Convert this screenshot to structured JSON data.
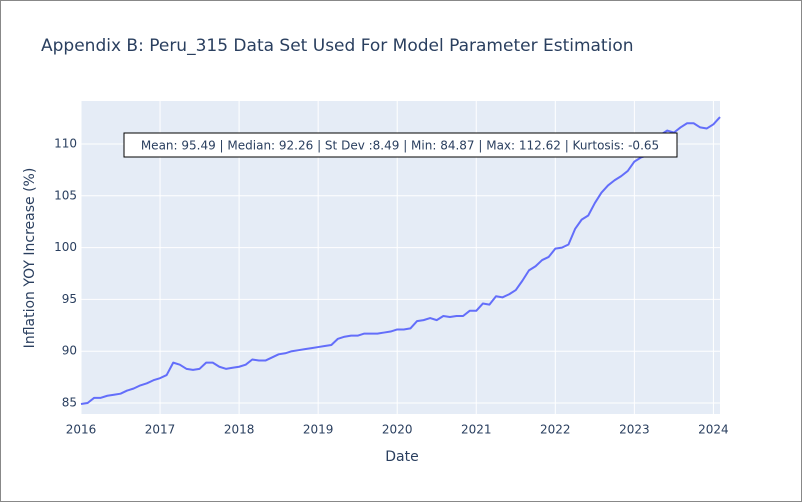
{
  "chart_data": {
    "type": "line",
    "title": "Appendix B: Peru_315 Data Set Used For Model Parameter Estimation",
    "x_label": "Date",
    "y_label": "Inflation YOY Increase (%)",
    "annotation": "Mean: 95.49 | Median: 92.26 | St Dev :8.49 | Min: 84.87 | Max: 112.62 | Kurtosis: -0.65",
    "x": [
      "2016-01",
      "2016-02",
      "2016-03",
      "2016-04",
      "2016-05",
      "2016-06",
      "2016-07",
      "2016-08",
      "2016-09",
      "2016-10",
      "2016-11",
      "2016-12",
      "2017-01",
      "2017-02",
      "2017-03",
      "2017-04",
      "2017-05",
      "2017-06",
      "2017-07",
      "2017-08",
      "2017-09",
      "2017-10",
      "2017-11",
      "2017-12",
      "2018-01",
      "2018-02",
      "2018-03",
      "2018-04",
      "2018-05",
      "2018-06",
      "2018-07",
      "2018-08",
      "2018-09",
      "2018-10",
      "2018-11",
      "2018-12",
      "2019-01",
      "2019-02",
      "2019-03",
      "2019-04",
      "2019-05",
      "2019-06",
      "2019-07",
      "2019-08",
      "2019-09",
      "2019-10",
      "2019-11",
      "2019-12",
      "2020-01",
      "2020-02",
      "2020-03",
      "2020-04",
      "2020-05",
      "2020-06",
      "2020-07",
      "2020-08",
      "2020-09",
      "2020-10",
      "2020-11",
      "2020-12",
      "2021-01",
      "2021-02",
      "2021-03",
      "2021-04",
      "2021-05",
      "2021-06",
      "2021-07",
      "2021-08",
      "2021-09",
      "2021-10",
      "2021-11",
      "2021-12",
      "2022-01",
      "2022-02",
      "2022-03",
      "2022-04",
      "2022-05",
      "2022-06",
      "2022-07",
      "2022-08",
      "2022-09",
      "2022-10",
      "2022-11",
      "2022-12",
      "2023-01",
      "2023-02",
      "2023-03",
      "2023-04",
      "2023-05",
      "2023-06",
      "2023-07",
      "2023-08",
      "2023-09",
      "2023-10",
      "2023-11",
      "2023-12",
      "2024-01",
      "2024-02"
    ],
    "series": [
      {
        "name": "Inflation",
        "color": "#636efa",
        "values": [
          84.9,
          85.0,
          85.5,
          85.5,
          85.7,
          85.8,
          85.9,
          86.2,
          86.4,
          86.7,
          86.9,
          87.2,
          87.4,
          87.7,
          88.9,
          88.7,
          88.3,
          88.2,
          88.3,
          88.9,
          88.9,
          88.5,
          88.3,
          88.4,
          88.5,
          88.7,
          89.2,
          89.1,
          89.1,
          89.4,
          89.7,
          89.8,
          90.0,
          90.1,
          90.2,
          90.3,
          90.4,
          90.5,
          90.6,
          91.2,
          91.4,
          91.5,
          91.5,
          91.7,
          91.7,
          91.7,
          91.8,
          91.9,
          92.1,
          92.1,
          92.2,
          92.9,
          93.0,
          93.2,
          93.0,
          93.4,
          93.3,
          93.4,
          93.4,
          93.9,
          93.9,
          94.6,
          94.5,
          95.3,
          95.2,
          95.5,
          95.9,
          96.8,
          97.8,
          98.2,
          98.8,
          99.1,
          99.9,
          100.0,
          100.3,
          101.8,
          102.7,
          103.1,
          104.3,
          105.3,
          106.0,
          106.5,
          106.9,
          107.4,
          108.3,
          108.7,
          108.9,
          110.4,
          110.9,
          111.3,
          111.1,
          111.6,
          112.0,
          112.0,
          111.6,
          111.5,
          111.9,
          112.6
        ]
      }
    ],
    "xlim": [
      "2016-01",
      "2024-02"
    ],
    "xticks": [
      2016,
      2017,
      2018,
      2019,
      2020,
      2021,
      2022,
      2023,
      2024
    ],
    "ylim": [
      83.94,
      114.15
    ],
    "yticks": [
      85,
      90,
      95,
      100,
      105,
      110
    ],
    "grid": true
  }
}
